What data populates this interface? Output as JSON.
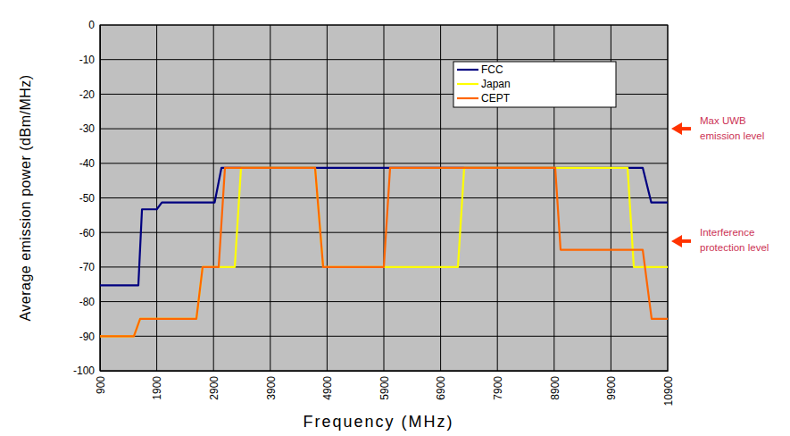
{
  "chart_data": {
    "type": "line",
    "x_label": "Frequency (MHz)",
    "y_label": "Average emission power (dBm/MHz)",
    "xlim": [
      900,
      10900
    ],
    "xticks": [
      900,
      1900,
      2900,
      3900,
      4900,
      5900,
      6900,
      7900,
      8900,
      9900,
      10900
    ],
    "ylim": [
      -100,
      0
    ],
    "yticks": [
      -100,
      -90,
      -80,
      -70,
      -60,
      -50,
      -40,
      -30,
      -20,
      -10,
      0
    ],
    "grid": true,
    "legend": "upper right",
    "series": [
      {
        "name": "FCC",
        "color": "#000080",
        "x": [
          900,
          1576,
          1640,
          1900,
          1990,
          2920,
          3040,
          10460,
          10610,
          10900
        ],
        "values": [
          -75.3,
          -75.3,
          -53.3,
          -53.3,
          -51.3,
          -51.3,
          -41.3,
          -41.3,
          -51.3,
          -51.3
        ]
      },
      {
        "name": "Japan",
        "color": "#ffff00",
        "x": [
          900,
          1497,
          1607,
          2598,
          2708,
          3274,
          3384,
          4689,
          4831,
          7205,
          7315,
          10193,
          10303,
          10900
        ],
        "values": [
          -90,
          -90,
          -85,
          -85,
          -70,
          -70,
          -41.3,
          -41.3,
          -70,
          -70,
          -41.3,
          -41.3,
          -70,
          -70
        ]
      },
      {
        "name": "CEPT",
        "color": "#ff6600",
        "x": [
          900,
          1497,
          1607,
          2598,
          2708,
          2991,
          3101,
          4689,
          4831,
          5900,
          6010,
          8919,
          9013,
          10460,
          10617,
          10900
        ],
        "values": [
          -90,
          -90,
          -85,
          -85,
          -70,
          -70,
          -41.3,
          -41.3,
          -70,
          -70,
          -41.3,
          -41.3,
          -65,
          -65,
          -85,
          -85
        ]
      }
    ],
    "annotations": [
      {
        "lines": [
          "Max UWB",
          "emission level"
        ],
        "y": -30
      },
      {
        "lines": [
          "Interference",
          "protection level"
        ],
        "y": -62.5
      }
    ]
  }
}
